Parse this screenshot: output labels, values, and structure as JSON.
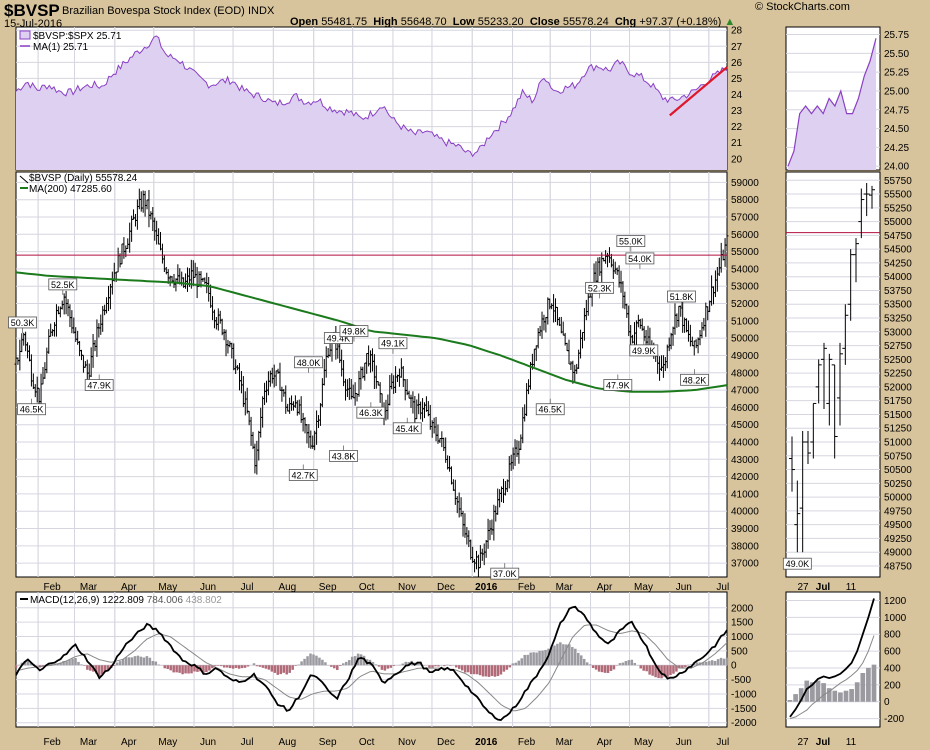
{
  "header": {
    "title": "$BVSP",
    "subtitle": "Brazilian Bovespa Stock Index (EOD)",
    "exchange": "INDX",
    "date": "15-Jul-2016",
    "open_label": "Open",
    "open": "55481.75",
    "high_label": "High",
    "high": "55648.70",
    "low_label": "Low",
    "low": "55233.20",
    "close_label": "Close",
    "close": "55578.24",
    "chg_label": "Chg",
    "chg": "+97.37 (+0.18%)",
    "logo": "© StockCharts.com"
  },
  "colors": {
    "ratio_line": "#8a3fc4",
    "ratio_fill": "#ddd0f0",
    "ma200": "#1b7a1b",
    "resistance": "#b01040",
    "trend": "#e0162b",
    "macd_line": "#000000",
    "signal_line": "#888888",
    "hist_pos": "#9a9aa0",
    "hist_neg": "#b06a78",
    "background": "#d8c49c",
    "panel": "#ffffff",
    "grid": "#d6d6e0"
  },
  "chart_data": [
    {
      "type": "area",
      "panel": "ratio",
      "legend": [
        "$BVSP:$SPX 25.71",
        "MA(1) 25.71"
      ],
      "ylim": [
        19.3,
        28.2
      ],
      "y_ticks": [
        "28",
        "27",
        "26",
        "25",
        "24",
        "23",
        "22",
        "21",
        "20"
      ],
      "trendline": {
        "from": [
          "2016-06-01",
          22.7
        ],
        "to": [
          "2016-07-15",
          25.7
        ]
      },
      "values": [
        24.2,
        24.8,
        24.3,
        24.6,
        24.2,
        24.1,
        24.4,
        24.6,
        24.5,
        25.3,
        25.9,
        26.5,
        27.0,
        27.6,
        26.4,
        26.2,
        25.6,
        25.0,
        24.6,
        24.8,
        24.9,
        24.3,
        24.0,
        23.8,
        23.4,
        23.6,
        23.9,
        23.5,
        23.7,
        23.2,
        23.0,
        22.9,
        22.5,
        22.8,
        23.4,
        22.4,
        21.9,
        21.5,
        21.7,
        21.3,
        21.0,
        20.8,
        20.3,
        20.5,
        21.5,
        22.1,
        22.9,
        24.1,
        23.6,
        25.2,
        24.2,
        24.4,
        24.6,
        25.6,
        25.8,
        25.5,
        26.0,
        25.4,
        25.1,
        24.6,
        23.8,
        23.6,
        23.9,
        24.2,
        24.8,
        25.2,
        25.7
      ]
    },
    {
      "type": "bar",
      "style": "ohlc",
      "panel": "price",
      "legend": [
        "$BVSP (Daily) 55578.24",
        "MA(200) 47285.60"
      ],
      "ylim": [
        36200,
        59600
      ],
      "y_ticks": [
        "59000",
        "58000",
        "57000",
        "56000",
        "55000",
        "54000",
        "53000",
        "52000",
        "51000",
        "50000",
        "49000",
        "48000",
        "47000",
        "46000",
        "45000",
        "44000",
        "43000",
        "42000",
        "41000",
        "40000",
        "39000",
        "38000",
        "37000"
      ],
      "x_ticks": [
        "Feb",
        "Mar",
        "Apr",
        "May",
        "Jun",
        "Jul",
        "Aug",
        "Sep",
        "Oct",
        "Nov",
        "Dec",
        "2016",
        "Feb",
        "Mar",
        "Apr",
        "May",
        "Jun",
        "Jul"
      ],
      "resistance_level": 54800,
      "closes": [
        48500,
        50300,
        47800,
        46500,
        49500,
        51500,
        52500,
        50800,
        49000,
        47900,
        50000,
        51800,
        53500,
        54700,
        55800,
        57200,
        58100,
        56800,
        55000,
        53800,
        53400,
        53000,
        53700,
        53200,
        52800,
        51200,
        50500,
        49000,
        47500,
        45500,
        42700,
        47000,
        48000,
        47500,
        45800,
        46500,
        44800,
        43800,
        46000,
        49400,
        49800,
        47800,
        46300,
        47500,
        49100,
        47800,
        45400,
        47200,
        48200,
        47000,
        45600,
        46200,
        44800,
        44300,
        43000,
        41000,
        39000,
        37600,
        37000,
        38500,
        40000,
        41400,
        42600,
        44000,
        47000,
        49800,
        51200,
        52300,
        50500,
        49000,
        47900,
        50800,
        53000,
        54200,
        55000,
        54000,
        52500,
        49900,
        51000,
        49700,
        49000,
        48200,
        50500,
        51800,
        50200,
        49300,
        51000,
        52600,
        54000,
        55578
      ],
      "ma200": [
        53800,
        53600,
        53500,
        53400,
        53300,
        53200,
        53000,
        52500,
        52000,
        51500,
        51000,
        50400,
        50200,
        50000,
        49600,
        49000,
        48300,
        47600,
        47100,
        46900,
        46900,
        47000,
        47285
      ],
      "annotations": [
        {
          "label": "50.3K",
          "date": "2015-01-20",
          "value": 50300,
          "pos": "above"
        },
        {
          "label": "46.5K",
          "date": "2015-01-27",
          "value": 46500,
          "pos": "below"
        },
        {
          "label": "52.5K",
          "date": "2015-02-20",
          "value": 52500,
          "pos": "above"
        },
        {
          "label": "47.9K",
          "date": "2015-03-20",
          "value": 47900,
          "pos": "below"
        },
        {
          "label": "42.7K",
          "date": "2015-08-24",
          "value": 42700,
          "pos": "below"
        },
        {
          "label": "48.0K",
          "date": "2015-08-28",
          "value": 48000,
          "pos": "above"
        },
        {
          "label": "49.4K",
          "date": "2015-09-20",
          "value": 49400,
          "pos": "above"
        },
        {
          "label": "49.8K",
          "date": "2015-10-02",
          "value": 49800,
          "pos": "above"
        },
        {
          "label": "43.8K",
          "date": "2015-09-24",
          "value": 43800,
          "pos": "below"
        },
        {
          "label": "46.3K",
          "date": "2015-10-15",
          "value": 46300,
          "pos": "below"
        },
        {
          "label": "49.1K",
          "date": "2015-11-01",
          "value": 49100,
          "pos": "above"
        },
        {
          "label": "45.4K",
          "date": "2015-11-12",
          "value": 45400,
          "pos": "below"
        },
        {
          "label": "37.0K",
          "date": "2016-01-26",
          "value": 37000,
          "pos": "below"
        },
        {
          "label": "52.3K",
          "date": "2016-04-08",
          "value": 52300,
          "pos": "above"
        },
        {
          "label": "46.5K",
          "date": "2016-03-01",
          "value": 46500,
          "pos": "below"
        },
        {
          "label": "47.9K",
          "date": "2016-04-22",
          "value": 47900,
          "pos": "below"
        },
        {
          "label": "55.0K",
          "date": "2016-05-02",
          "value": 55000,
          "pos": "above"
        },
        {
          "label": "54.0K",
          "date": "2016-05-09",
          "value": 54000,
          "pos": "above"
        },
        {
          "label": "49.9K",
          "date": "2016-05-12",
          "value": 49900,
          "pos": "below"
        },
        {
          "label": "51.8K",
          "date": "2016-06-10",
          "value": 51800,
          "pos": "above"
        },
        {
          "label": "48.2K",
          "date": "2016-06-20",
          "value": 48200,
          "pos": "below"
        }
      ]
    },
    {
      "type": "line",
      "panel": "macd",
      "legend": [
        "MACD(12,26,9)",
        "1222.809",
        "784.006",
        "438.802"
      ],
      "ylim": [
        -2150,
        2550
      ],
      "y_ticks": [
        "2000",
        "1500",
        "1000",
        "500",
        "0",
        "-500",
        "-1000",
        "-1500",
        "-2000"
      ],
      "x_ticks": [
        "Feb",
        "Mar",
        "Apr",
        "May",
        "Jun",
        "Jul",
        "Aug",
        "Sep",
        "Oct",
        "Nov",
        "Dec",
        "2016",
        "Feb",
        "Mar",
        "Apr",
        "May",
        "Jun",
        "Jul"
      ],
      "macd": [
        -300,
        200,
        -200,
        100,
        300,
        700,
        200,
        -400,
        -100,
        600,
        1000,
        1400,
        1200,
        700,
        200,
        0,
        -300,
        -100,
        -500,
        -600,
        -300,
        -700,
        -1300,
        -1600,
        -1000,
        -300,
        -700,
        -1200,
        -500,
        300,
        0,
        -600,
        -300,
        0,
        100,
        -300,
        -100,
        -200,
        -700,
        -1200,
        -1700,
        -1900,
        -1500,
        -900,
        -300,
        400,
        1500,
        2100,
        1700,
        1100,
        700,
        1200,
        1500,
        800,
        0,
        -500,
        -300,
        0,
        300,
        700,
        1223
      ],
      "signal": [
        -200,
        -100,
        -50,
        0,
        100,
        300,
        400,
        200,
        100,
        200,
        500,
        900,
        1100,
        1000,
        700,
        400,
        100,
        -100,
        -300,
        -400,
        -400,
        -500,
        -800,
        -1100,
        -1200,
        -1000,
        -900,
        -900,
        -800,
        -400,
        -200,
        -300,
        -300,
        -200,
        -100,
        -100,
        -100,
        -150,
        -300,
        -600,
        -1000,
        -1400,
        -1600,
        -1500,
        -1100,
        -600,
        200,
        1000,
        1400,
        1400,
        1200,
        1100,
        1200,
        1100,
        700,
        200,
        -100,
        -100,
        100,
        400,
        784
      ]
    },
    {
      "type": "area",
      "panel": "ratio_zoom",
      "ylim": [
        23.95,
        25.85
      ],
      "y_ticks": [
        "25.75",
        "25.50",
        "25.25",
        "25.00",
        "24.75",
        "24.50",
        "24.25",
        "24.00"
      ],
      "x_ticks": [
        "27",
        "Jul",
        "11"
      ],
      "values": [
        24.0,
        24.2,
        24.7,
        24.8,
        24.7,
        24.8,
        24.7,
        24.9,
        24.8,
        25.0,
        24.7,
        24.7,
        24.9,
        25.2,
        25.4,
        25.7
      ]
    },
    {
      "type": "bar",
      "style": "ohlc",
      "panel": "price_zoom",
      "ylim": [
        48550,
        55900
      ],
      "y_ticks": [
        "55750",
        "55500",
        "55250",
        "55000",
        "54750",
        "54500",
        "54250",
        "54000",
        "53750",
        "53500",
        "53250",
        "53000",
        "52750",
        "52500",
        "52250",
        "52000",
        "51750",
        "51500",
        "51250",
        "51000",
        "50750",
        "50500",
        "50250",
        "50000",
        "49750",
        "49500",
        "49250",
        "49000",
        "48750"
      ],
      "x_ticks": [
        "27",
        "Jul",
        "11"
      ],
      "resistance_level": 54800,
      "annotations": [
        {
          "label": "49.0K",
          "value": 49000,
          "pos": "below"
        }
      ],
      "bars": [
        [
          50700,
          50100,
          51100,
          50500
        ],
        [
          49500,
          49000,
          50300,
          49700
        ],
        [
          49800,
          49000,
          51200,
          51000
        ],
        [
          51000,
          50600,
          51200,
          50800
        ],
        [
          51000,
          50700,
          51700,
          51700
        ],
        [
          52000,
          51700,
          52500,
          52400
        ],
        [
          52500,
          51600,
          52800,
          52700
        ],
        [
          51700,
          51300,
          52600,
          52500
        ],
        [
          52400,
          50700,
          52400,
          51100
        ],
        [
          51800,
          51300,
          52800,
          52600
        ],
        [
          52700,
          52400,
          53500,
          53300
        ],
        [
          53500,
          53200,
          54500,
          54400
        ],
        [
          54400,
          53900,
          54700,
          54600
        ],
        [
          55000,
          54700,
          55600,
          55400
        ],
        [
          55500,
          55100,
          55700,
          55500
        ],
        [
          55480,
          55233,
          55649,
          55578
        ]
      ]
    },
    {
      "type": "line",
      "panel": "macd_zoom",
      "ylim": [
        -300,
        1300
      ],
      "y_ticks": [
        "1200",
        "1000",
        "800",
        "600",
        "400",
        "200",
        "0",
        "-200"
      ],
      "x_ticks": [
        "27",
        "Jul",
        "11"
      ],
      "macd": [
        -180,
        -90,
        20,
        150,
        200,
        270,
        300,
        280,
        300,
        330,
        390,
        460,
        600,
        800,
        1000,
        1223
      ],
      "signal": [
        -200,
        -180,
        -140,
        -100,
        -30,
        20,
        80,
        120,
        170,
        220,
        260,
        310,
        370,
        460,
        600,
        784
      ],
      "histogram": [
        20,
        90,
        160,
        250,
        230,
        250,
        220,
        160,
        130,
        110,
        130,
        150,
        230,
        340,
        400,
        439
      ]
    }
  ]
}
